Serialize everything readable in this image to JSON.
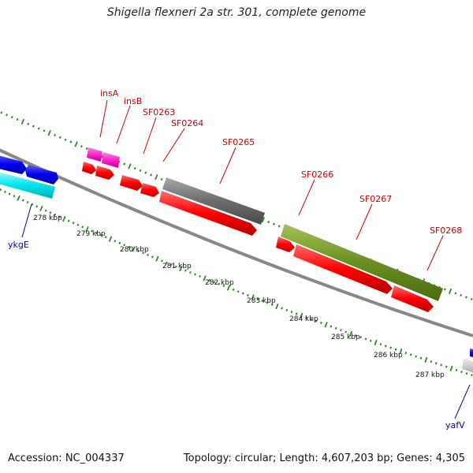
{
  "title": "Shigella flexneri 2a str. 301, complete genome",
  "footer": {
    "accession": "Accession: NC_004337",
    "stats": "Topology: circular; Length: 4,607,203 bp; Genes: 4,305"
  },
  "colors": {
    "backbone": "#8a8a8a",
    "tick": "#2e8b22",
    "label_red": "#cc0000",
    "label_blue": "#0000aa",
    "cds_red": "#ff0000",
    "cds_pink": "#ff33cc",
    "gene_gray": "#707070",
    "gene_olive": "#6b8e23",
    "gene_blue": "#0000ee",
    "gene_cyan": "#00e5ee"
  },
  "gene_labels": [
    {
      "name": "insA",
      "color": "red"
    },
    {
      "name": "insB",
      "color": "red"
    },
    {
      "name": "SF0263",
      "color": "red"
    },
    {
      "name": "SF0264",
      "color": "red"
    },
    {
      "name": "SF0265",
      "color": "red"
    },
    {
      "name": "SF0266",
      "color": "red"
    },
    {
      "name": "SF0267",
      "color": "red"
    },
    {
      "name": "SF0268",
      "color": "red"
    },
    {
      "name": "ykgE",
      "color": "blue"
    },
    {
      "name": "yafV",
      "color": "blue"
    }
  ],
  "position_labels": [
    "278 kbp",
    "279 kbp",
    "280 kbp",
    "281 kbp",
    "282 kbp",
    "283 kbp",
    "284 kbp",
    "285 kbp",
    "286 kbp",
    "287 kbp"
  ]
}
